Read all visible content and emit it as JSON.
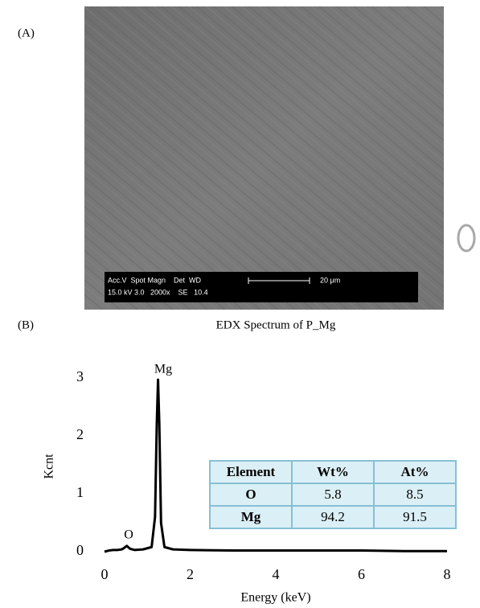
{
  "panel_a": "(A)",
  "panel_b": "(B)",
  "sem": {
    "info_line_1": "Acc.V  Spot Magn    Det  WD",
    "info_line_2": "15.0 kV 3.0   2000x    SE   10.4",
    "scale_bar": "20 μm"
  },
  "table": {
    "header": [
      "Element",
      "Wt%",
      "At%"
    ],
    "rows": [
      [
        "O",
        5.8,
        8.5
      ],
      [
        "Mg",
        94.2,
        91.5
      ]
    ]
  },
  "chart_data": {
    "type": "line",
    "title": "EDX Spectrum of P_Mg",
    "x_label": "Energy (keV)",
    "y_label": "Kcnt",
    "annotations": [
      "Mg",
      "O"
    ],
    "x": [
      0,
      0.1,
      0.2,
      0.3,
      0.4,
      0.45,
      0.5,
      0.52,
      0.55,
      0.6,
      0.7,
      0.9,
      1.1,
      1.18,
      1.22,
      1.25,
      1.28,
      1.32,
      1.4,
      1.6,
      2,
      3,
      4,
      5,
      6,
      7,
      8
    ],
    "values": [
      0,
      0.02,
      0.03,
      0.03,
      0.04,
      0.06,
      0.09,
      0.1,
      0.08,
      0.05,
      0.03,
      0.04,
      0.08,
      0.6,
      2.2,
      2.97,
      2.2,
      0.5,
      0.08,
      0.04,
      0.03,
      0.02,
      0.02,
      0.02,
      0.02,
      0.01,
      0.01
    ],
    "color": "#000000",
    "xlim": [
      0,
      8
    ],
    "ylim": [
      0,
      3
    ],
    "xticks": [
      0,
      2,
      4,
      6,
      8
    ],
    "yticks": [
      0,
      1,
      2,
      3
    ]
  }
}
